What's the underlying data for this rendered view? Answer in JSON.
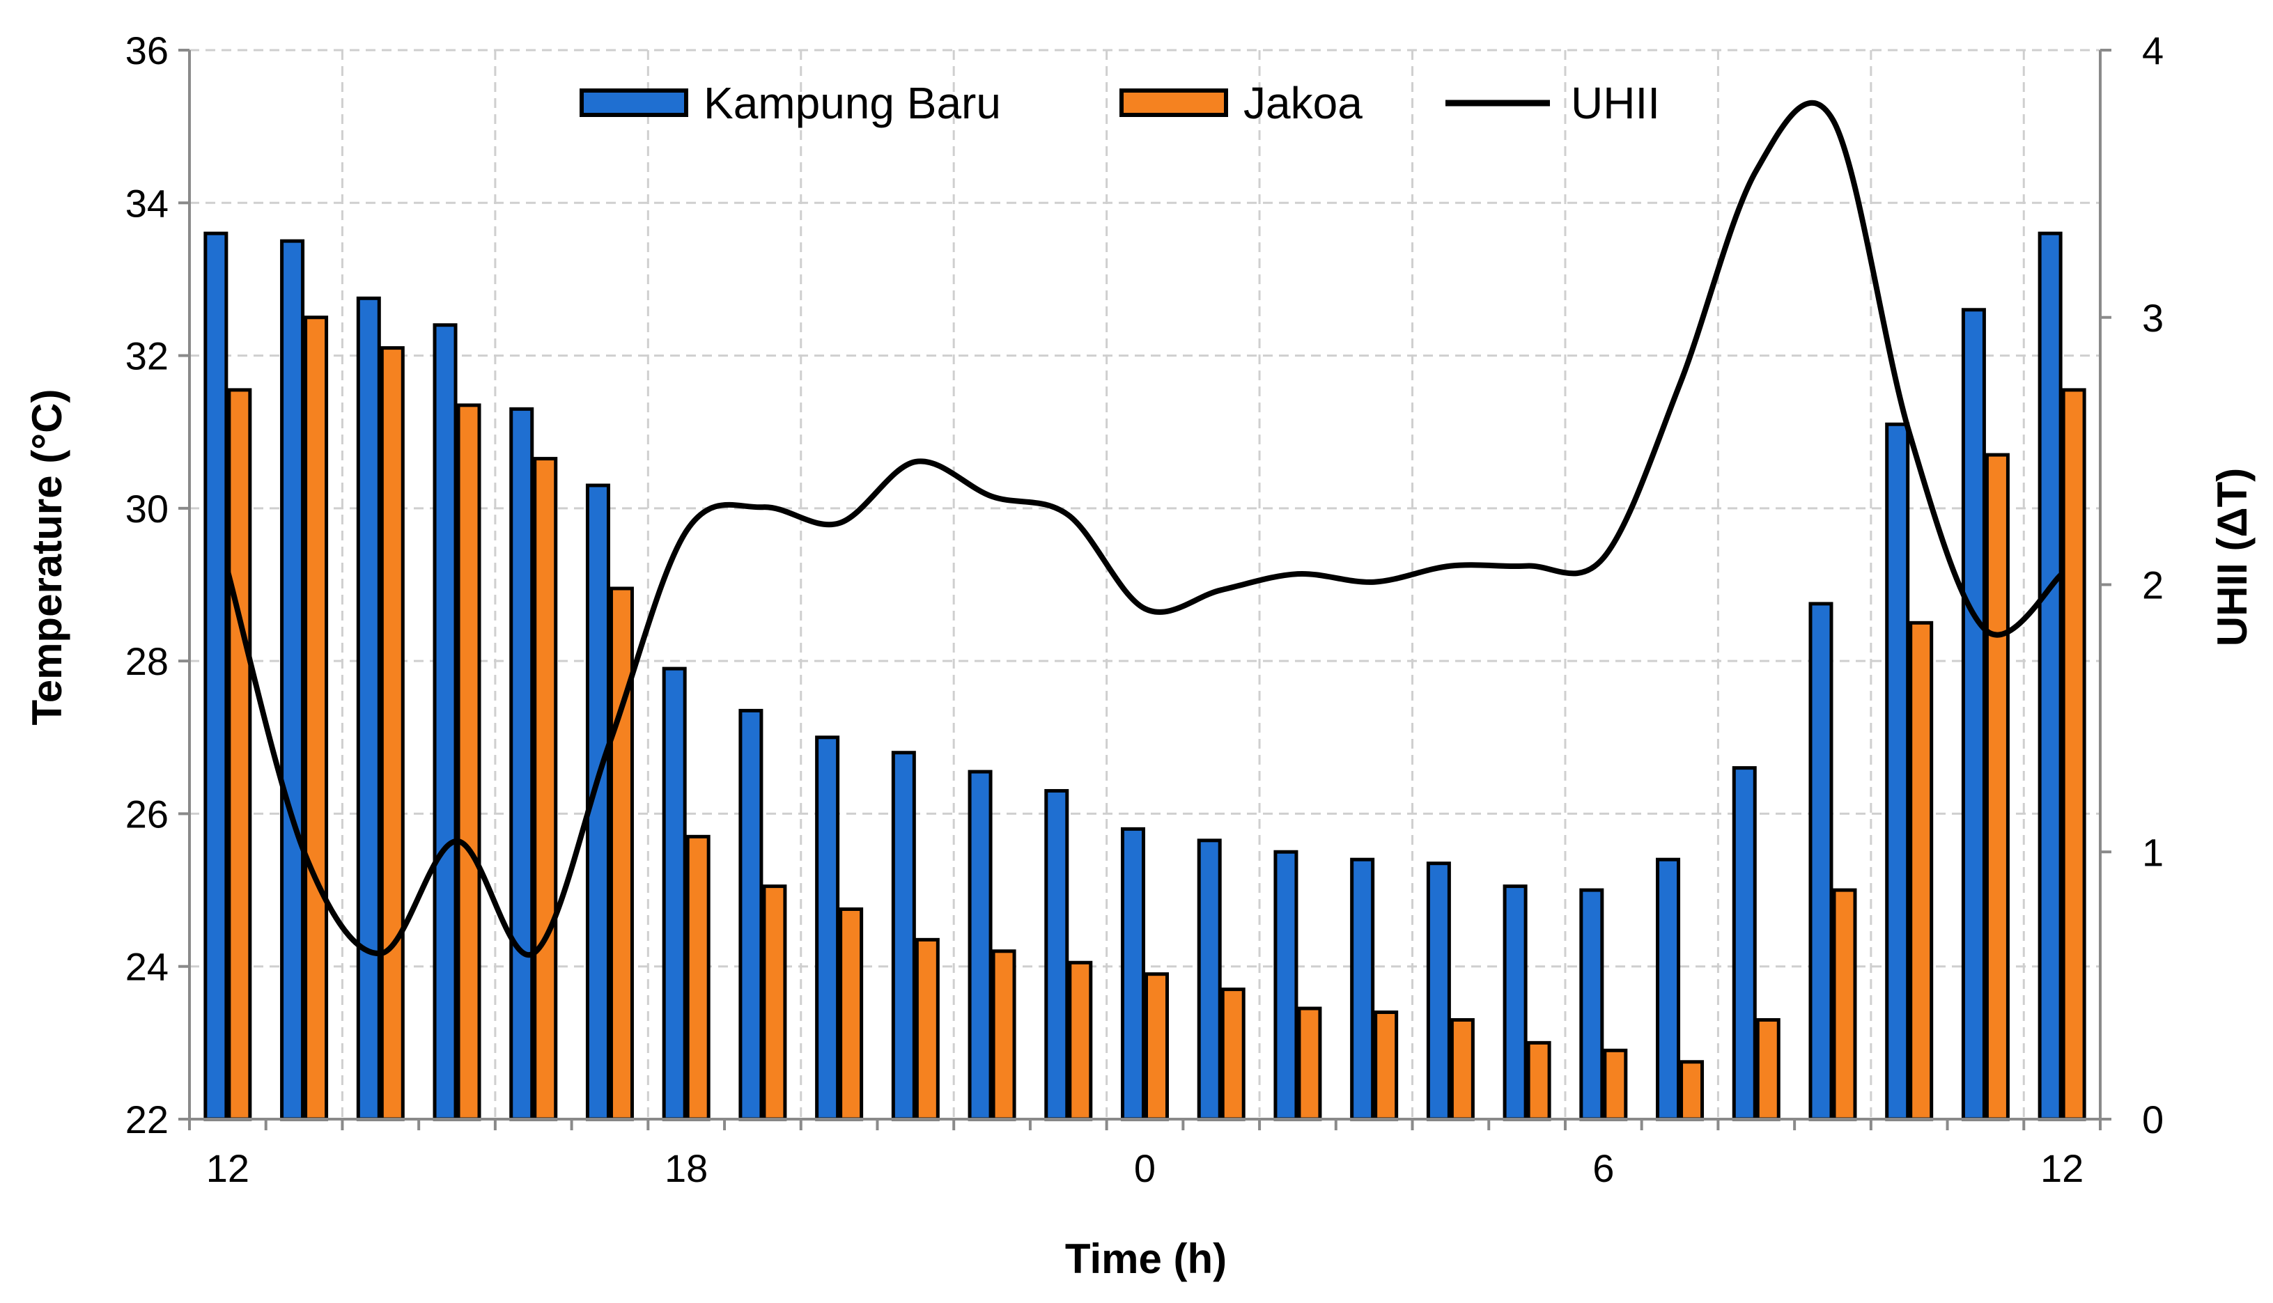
{
  "chart_data": {
    "type": "bar",
    "title": "",
    "xlabel": "Time (h)",
    "ylabel": "Temperature (°C)",
    "y2label": "UHII (ΔT)",
    "ylim": [
      22,
      36
    ],
    "yticks": [
      22,
      24,
      26,
      28,
      30,
      32,
      34,
      36
    ],
    "y2lim": [
      0,
      4
    ],
    "y2ticks": [
      0,
      1,
      2,
      3,
      4
    ],
    "grid": true,
    "legend_position": "top-center",
    "hours": [
      12,
      13,
      14,
      15,
      16,
      17,
      18,
      19,
      20,
      21,
      22,
      23,
      0,
      1,
      2,
      3,
      4,
      5,
      6,
      7,
      8,
      9,
      10,
      11,
      12
    ],
    "x_tick_labels": [
      {
        "index": 0,
        "label": "12"
      },
      {
        "index": 6,
        "label": "18"
      },
      {
        "index": 12,
        "label": "0"
      },
      {
        "index": 18,
        "label": "6"
      },
      {
        "index": 24,
        "label": "12"
      }
    ],
    "series": [
      {
        "name": "Kampung Baru",
        "kind": "bar",
        "axis": "left",
        "color": "#1F6FD1",
        "values": [
          33.6,
          33.5,
          32.75,
          32.4,
          31.3,
          30.3,
          27.9,
          27.35,
          27.0,
          26.8,
          26.55,
          26.3,
          25.8,
          25.65,
          25.5,
          25.4,
          25.35,
          25.05,
          25.0,
          25.4,
          26.6,
          28.75,
          31.1,
          32.6,
          33.6
        ]
      },
      {
        "name": "Jakoa",
        "kind": "bar",
        "axis": "left",
        "color": "#F58220",
        "values": [
          31.55,
          32.5,
          32.1,
          31.35,
          30.65,
          28.95,
          25.7,
          25.05,
          24.75,
          24.35,
          24.2,
          24.05,
          23.9,
          23.7,
          23.45,
          23.4,
          23.3,
          23.0,
          22.9,
          22.75,
          23.3,
          25.0,
          28.5,
          30.7,
          31.55
        ]
      },
      {
        "name": "UHII",
        "kind": "line",
        "axis": "right",
        "color": "#000000",
        "values": [
          2.05,
          1.0,
          0.62,
          1.04,
          0.62,
          1.41,
          2.2,
          2.29,
          2.23,
          2.46,
          2.33,
          2.26,
          1.91,
          1.98,
          2.04,
          2.01,
          2.07,
          2.07,
          2.1,
          2.75,
          3.55,
          3.74,
          2.57,
          1.83,
          2.04
        ]
      }
    ]
  }
}
